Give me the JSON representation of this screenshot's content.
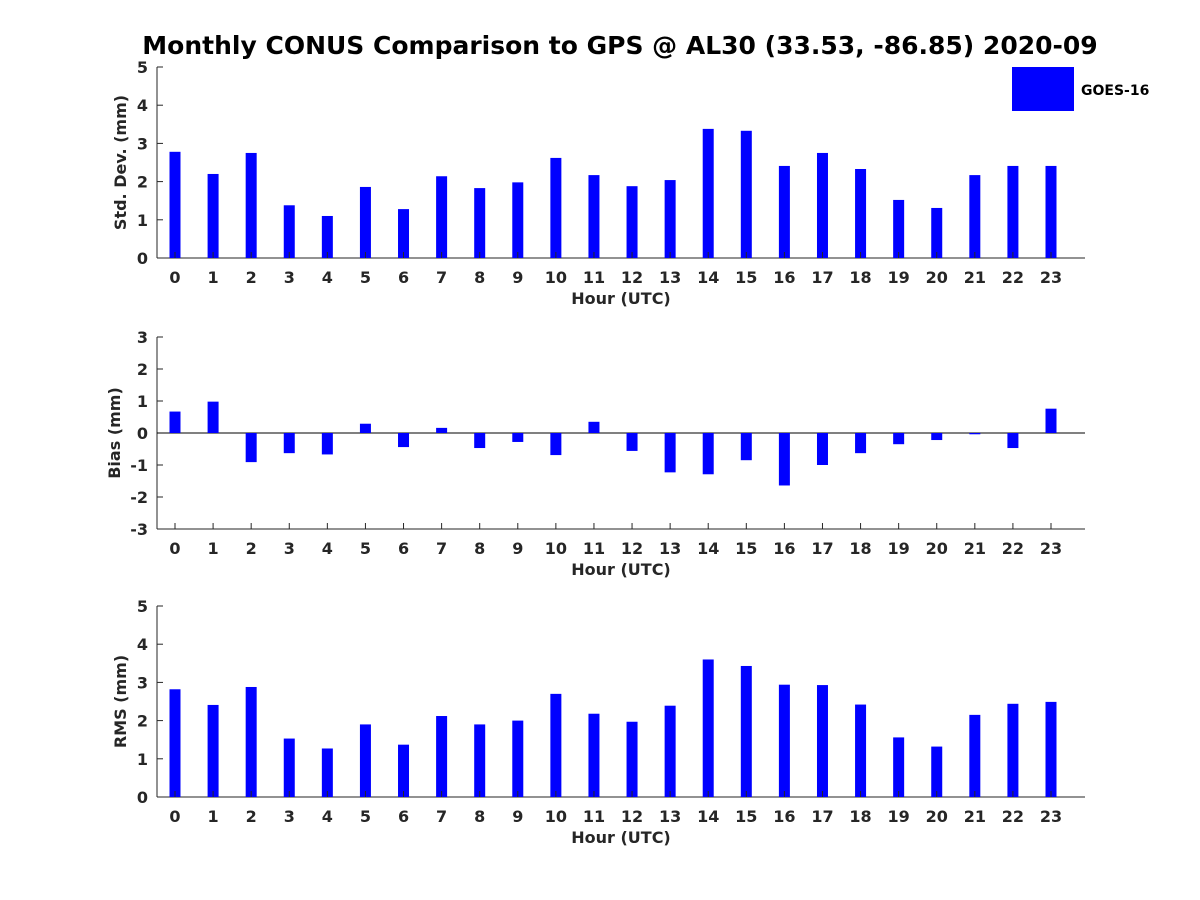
{
  "chart_data": {
    "title": "Monthly CONUS Comparison to GPS @ AL30 (33.53, -86.85) 2020-09",
    "legend": {
      "label": "GOES-16",
      "color": "#0000ff",
      "placement": "top-right"
    },
    "panels": [
      {
        "type": "bar",
        "ylabel": "Std. Dev. (mm)",
        "xlabel": "Hour (UTC)",
        "ylim": [
          0,
          5
        ],
        "yticks": [
          0,
          1,
          2,
          3,
          4,
          5
        ],
        "categories": [
          "0",
          "1",
          "2",
          "3",
          "4",
          "5",
          "6",
          "7",
          "8",
          "9",
          "10",
          "11",
          "12",
          "13",
          "14",
          "15",
          "16",
          "17",
          "18",
          "19",
          "20",
          "21",
          "22",
          "23"
        ],
        "series": [
          {
            "name": "GOES-16",
            "values": [
              2.78,
              2.2,
              2.75,
              1.38,
              1.1,
              1.86,
              1.28,
              2.14,
              1.83,
              1.98,
              2.62,
              2.17,
              1.88,
              2.04,
              3.38,
              3.33,
              2.41,
              2.75,
              2.33,
              1.52,
              1.31,
              2.17,
              2.41,
              2.41
            ]
          }
        ]
      },
      {
        "type": "bar",
        "ylabel": "Bias (mm)",
        "xlabel": "Hour (UTC)",
        "ylim": [
          -3,
          3
        ],
        "yticks": [
          -3,
          -2,
          -1,
          0,
          1,
          2,
          3
        ],
        "zero_line": true,
        "categories": [
          "0",
          "1",
          "2",
          "3",
          "4",
          "5",
          "6",
          "7",
          "8",
          "9",
          "10",
          "11",
          "12",
          "13",
          "14",
          "15",
          "16",
          "17",
          "18",
          "19",
          "20",
          "21",
          "22",
          "23"
        ],
        "series": [
          {
            "name": "GOES-16",
            "values": [
              0.67,
              0.98,
              -0.91,
              -0.63,
              -0.67,
              0.29,
              -0.44,
              0.16,
              -0.47,
              -0.28,
              -0.69,
              0.35,
              -0.56,
              -1.23,
              -1.29,
              -0.85,
              -1.64,
              -1.0,
              -0.63,
              -0.35,
              -0.22,
              -0.04,
              -0.47,
              0.76
            ]
          }
        ]
      },
      {
        "type": "bar",
        "ylabel": "RMS (mm)",
        "xlabel": "Hour (UTC)",
        "ylim": [
          0,
          5
        ],
        "yticks": [
          0,
          1,
          2,
          3,
          4,
          5
        ],
        "categories": [
          "0",
          "1",
          "2",
          "3",
          "4",
          "5",
          "6",
          "7",
          "8",
          "9",
          "10",
          "11",
          "12",
          "13",
          "14",
          "15",
          "16",
          "17",
          "18",
          "19",
          "20",
          "21",
          "22",
          "23"
        ],
        "series": [
          {
            "name": "GOES-16",
            "values": [
              2.82,
              2.41,
              2.88,
              1.53,
              1.27,
              1.9,
              1.37,
              2.12,
              1.9,
              2.0,
              2.7,
              2.18,
              1.97,
              2.39,
              3.6,
              3.43,
              2.94,
              2.93,
              2.42,
              1.56,
              1.32,
              2.15,
              2.44,
              2.49
            ]
          }
        ]
      }
    ]
  }
}
